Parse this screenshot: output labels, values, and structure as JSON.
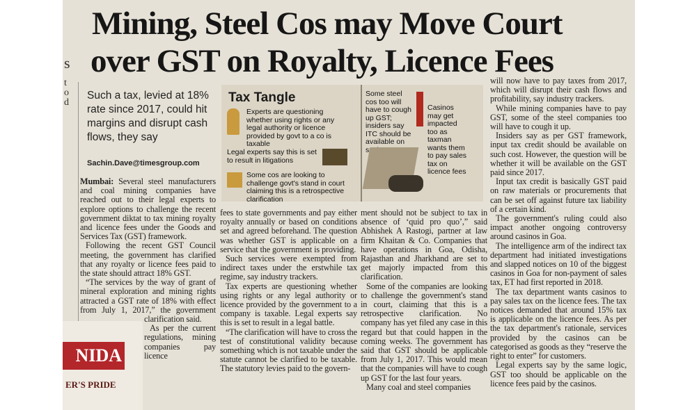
{
  "headline": {
    "lines": [
      "Mining, Steel Cos may Move Court",
      "over GST on Royalty, Licence Fees"
    ]
  },
  "deck": "Such a tax, levied at 18% rate since 2017, could hit margins and disrupt cash flows, they say",
  "byline": "Sachin.Dave@timesgroup.com",
  "graphic": {
    "title": "Tax Tangle",
    "left_items": [
      "Experts are questioning whether using rights or any legal authority or licence provided by govt to a co is taxable",
      "Legal experts say this is set to result in litigations",
      "Some cos are looking to challenge govt's stand in court claiming this is a retrospective clarification"
    ],
    "right_items": [
      "Some steel cos too will have to cough up GST; insiders say ITC should be available on such cost",
      "Casinos may get impacted too as taxman wants them to pay sales tax on licence fees"
    ]
  },
  "dateline": "Mumbai:",
  "columns": [
    [
      "Several steel manufacturers and coal mining companies have reached out to their legal experts to explore options to challenge the recent government diktat to tax mining royalty and licence fees under the Goods and Services Tax (GST) framework.",
      "Following the recent GST Council meeting, the government has clarified that any royalty or licence fees paid to the state should attract 18% GST.",
      "“The services by the way of grant of mineral exploration and mining rights attracted a GST rate of 18% with effect from July 1, 2017,” the government clarification said.",
      "As per the current regulations, mining companies pay licence"
    ],
    [
      "fees to state governments and pay either royalty annually or based on conditions set and agreed beforehand. The question was whether GST is applicable on a service that the government is providing.",
      "Such services were exempted from indirect taxes under the erstwhile tax regime, say industry trackers.",
      "Tax experts are questioning whether using rights or any legal authority or licence provided by the government to a company is taxable. Legal experts say this is set to result in a legal battle.",
      "“The clarification will have to cross the test of constitutional validity because something which is not taxable under the statute cannot be clarified to be taxable. The statutory levies paid to the govern-"
    ],
    [
      "ment should not be subject to tax in absence of ‘quid pro quo’,” said Abhishek A Rastogi, partner at law firm Khaitan & Co. Companies that have operations in Goa, Odisha, Rajasthan and Jharkhand are set to get majorly impacted from this clarification.",
      "Some of the companies are looking to challenge the government's stand in court, claiming that this is a retrospective clarification. No company has yet filed any case in this regard but that could happen in the coming weeks. The government has said that GST should be applicable from July 1, 2017. This would mean that the companies will have to cough up GST for the last four years.",
      "Many coal and steel companies"
    ],
    [
      "will now have to pay taxes from 2017, which will disrupt their cash flows and profitability, say industry trackers.",
      "While mining companies have to pay GST, some of the steel companies too will have to cough it up.",
      "Insiders say as per GST framework, input tax credit should be available on such cost. However, the question will be whether it will be available on the GST paid since 2017.",
      "Input tax credit is basically GST paid on raw materials or procurements that can be set off against future tax liability of a certain kind.",
      "The government's ruling could also impact another ongoing controversy around casinos in Goa.",
      "The intelligence arm of the indirect tax department had initiated investigations and slapped notices on 10 of the biggest casinos in Goa for non-payment of sales tax, ET had first reported in 2018.",
      "The tax department wants casinos to pay sales tax on the licence fees. The tax notices demanded that around 15% tax is applicable on the licence fees. As per the tax department's rationale, services provided by the casinos can be categorised as goods as they “reserve the right to enter” for customers.",
      "Legal experts say by the same logic, GST too should be applicable on the licence fees paid by the casinos."
    ]
  ],
  "advert": {
    "brand": "NIDA",
    "tagline": "ER'S PRIDE"
  },
  "edge_letters": [
    "s",
    "t",
    "o",
    "d"
  ]
}
